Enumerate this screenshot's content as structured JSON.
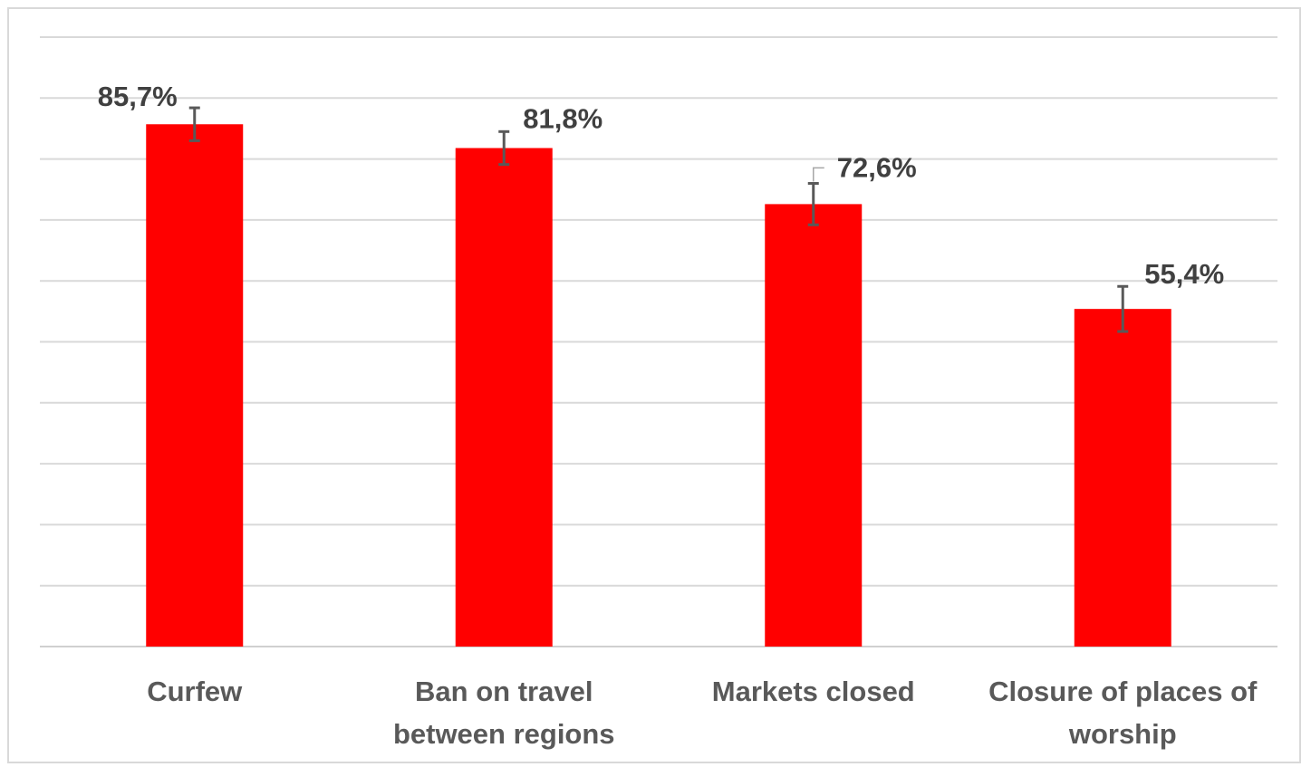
{
  "chart_data": {
    "type": "bar",
    "title": "",
    "xlabel": "",
    "ylabel": "",
    "categories": [
      [
        "Curfew"
      ],
      [
        "Ban on travel",
        "between regions"
      ],
      [
        "Markets closed"
      ],
      [
        "Closure of places of",
        "worship"
      ]
    ],
    "values": [
      85.7,
      81.8,
      72.6,
      55.4
    ],
    "data_labels": [
      "85,7%",
      "81,8%",
      "72,6%",
      "55,4%"
    ],
    "error_bars": [
      2.7,
      2.7,
      3.4,
      3.7
    ],
    "ylim": [
      0,
      100
    ],
    "grid_step": 10,
    "y_axis_shown": false,
    "grid": true,
    "legend": "none",
    "colors": {
      "bar": "#ff0000",
      "error_bar": "#595959",
      "grid": "#d9d9d9",
      "label_text": "#404040",
      "category_text": "#595959"
    }
  }
}
